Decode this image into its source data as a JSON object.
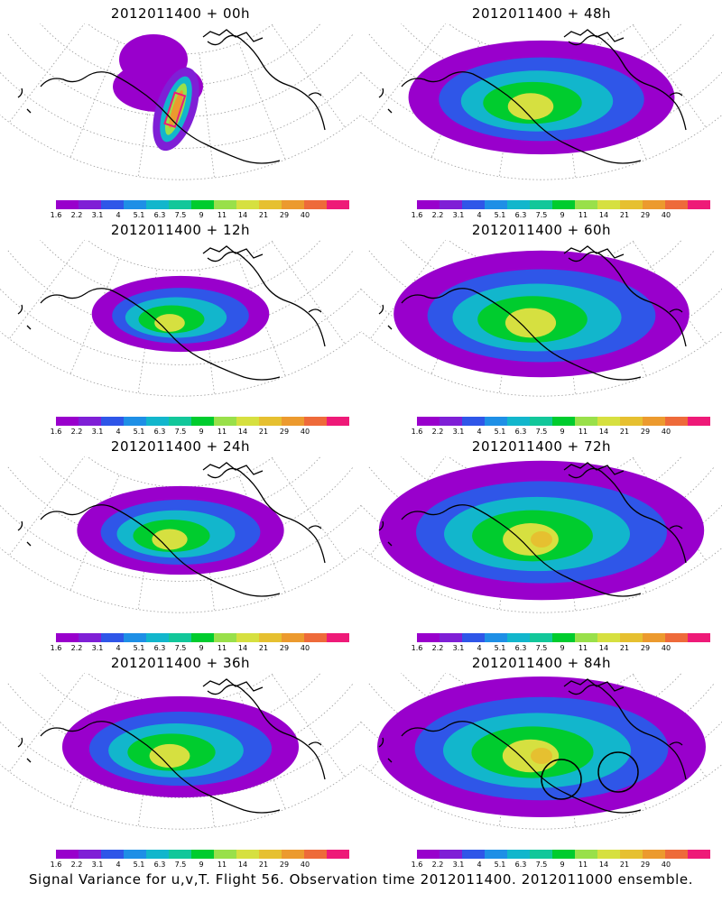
{
  "panels": [
    {
      "title": "2012011400 + 00h",
      "intensity": 0
    },
    {
      "title": "2012011400 + 48h",
      "intensity": 4
    },
    {
      "title": "2012011400 + 12h",
      "intensity": 1
    },
    {
      "title": "2012011400 + 60h",
      "intensity": 5
    },
    {
      "title": "2012011400 + 24h",
      "intensity": 2
    },
    {
      "title": "2012011400 + 72h",
      "intensity": 6
    },
    {
      "title": "2012011400 + 36h",
      "intensity": 3
    },
    {
      "title": "2012011400 + 84h",
      "intensity": 7
    }
  ],
  "colorbar": {
    "labels": [
      "1.6",
      "2.2",
      "3.1",
      "4",
      "5.1",
      "6.3",
      "7.5",
      "9",
      "11",
      "14",
      "21",
      "29",
      "40"
    ],
    "colors": [
      "#9900cc",
      "#7f1fd6",
      "#2f56e8",
      "#1e8fe6",
      "#12b6cc",
      "#12c79a",
      "#00cc2e",
      "#99e04a",
      "#d6e040",
      "#e6c030",
      "#ec9a2e",
      "#ee6a3a",
      "#ee1a78"
    ]
  },
  "caption": "Signal Variance for u,v,T. Flight 56. Observation time 2012011400. 2012011000 ensemble."
}
